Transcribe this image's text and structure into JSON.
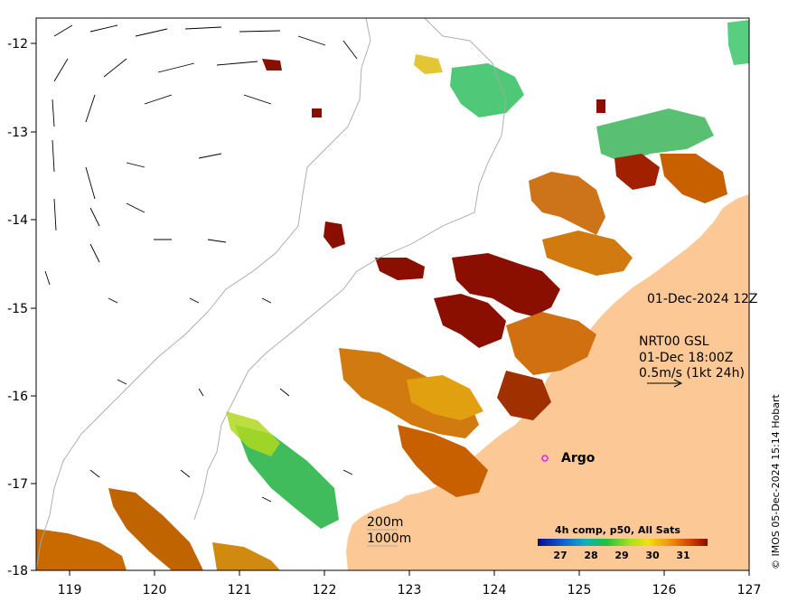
{
  "map": {
    "axes": {
      "lon_ticks": [
        "119",
        "120",
        "121",
        "122",
        "123",
        "124",
        "125",
        "126",
        "127"
      ],
      "lat_ticks": [
        "-12",
        "-13",
        "-14",
        "-15",
        "-16",
        "-17",
        "-18"
      ]
    },
    "date_label": "01-Dec-2024 12Z",
    "current_legend": {
      "product": "NRT00 GSL",
      "time": "01-Dec 18:00Z",
      "scale": "0.5m/s (1kt 24h)"
    },
    "bathymetry": {
      "contour_200": "200m",
      "contour_1000": "1000m"
    },
    "argo_label": "Argo",
    "colorbar": {
      "title": "4h comp, p50, All Sats",
      "ticks": [
        "27",
        "28",
        "29",
        "30",
        "31"
      ]
    },
    "credit": "© IMOS 05-Dec-2024 15:14 Hobart",
    "colors": {
      "land": "#fcc896",
      "sst_low": "#1010a0",
      "sst_high": "#8b0f00",
      "argo_marker": "#e020e0"
    }
  }
}
